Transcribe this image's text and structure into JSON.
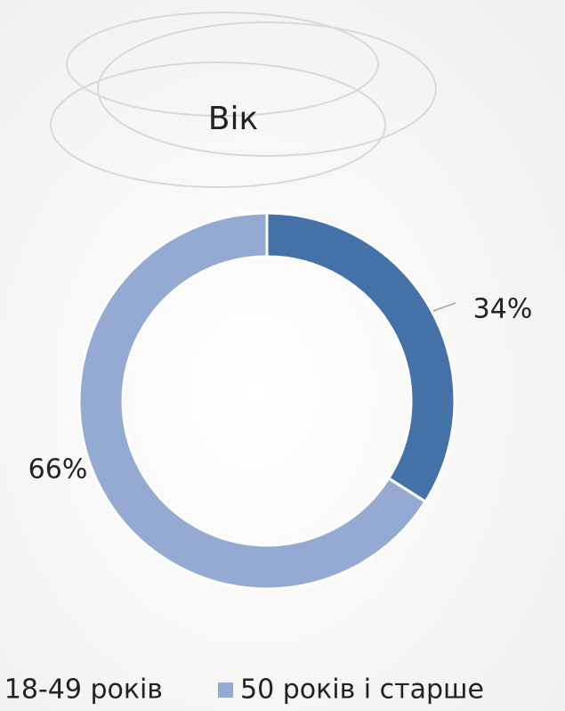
{
  "chart_data": {
    "type": "donut",
    "title": "Вік",
    "categories": [
      "18-49 років",
      "50 років і старше"
    ],
    "values": [
      34,
      66
    ],
    "value_labels": [
      "34%",
      "66%"
    ],
    "colors": [
      "#4472a8",
      "#94aad3"
    ]
  }
}
